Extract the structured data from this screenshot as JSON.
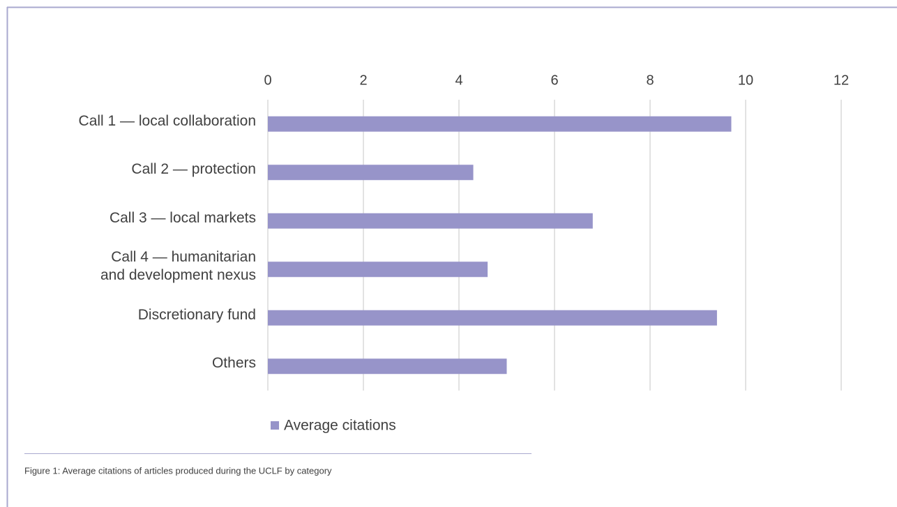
{
  "chart_data": {
    "type": "bar",
    "orientation": "horizontal",
    "categories": [
      "Call 1 — local collaboration",
      "Call 2 — protection",
      "Call 3 — local markets",
      "Call 4 — humanitarian\nand development nexus",
      "Discretionary fund",
      "Others"
    ],
    "series": [
      {
        "name": "Average citations",
        "color": "#9794c9",
        "values": [
          9.7,
          4.3,
          6.8,
          4.6,
          9.4,
          5.0
        ]
      }
    ],
    "xlim": [
      0,
      12
    ],
    "xticks": [
      0,
      2,
      4,
      6,
      8,
      10,
      12
    ],
    "grid": true,
    "legend": "bottom",
    "caption": "Figure 1: Average citations of articles produced during the UCLF by category"
  }
}
